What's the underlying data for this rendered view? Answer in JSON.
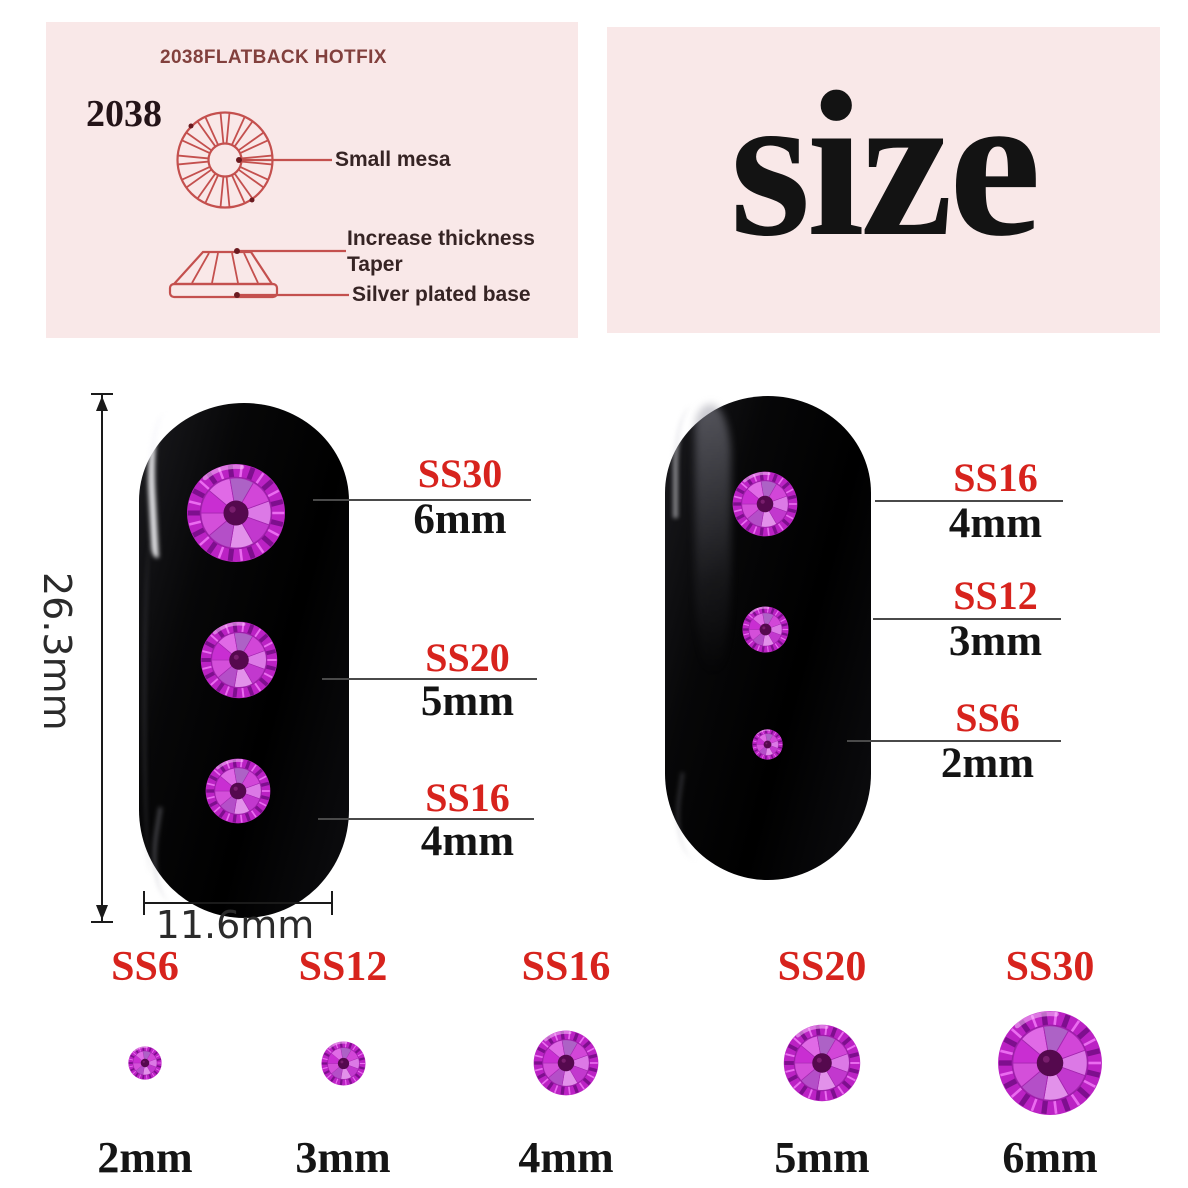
{
  "top_left_panel": {
    "title": "2038FLATBACK HOTFIX",
    "model_number": "2038",
    "labels": {
      "small_mesa": "Small mesa",
      "increase_thickness": "Increase thickness",
      "taper": "Taper",
      "silver_plated_base": "Silver plated base"
    }
  },
  "top_right_panel": {
    "heading": "size"
  },
  "left_nail": {
    "height_label": "26.3mm",
    "width_label": "11.6mm",
    "callouts": [
      {
        "ss": "SS30",
        "mm": "6mm"
      },
      {
        "ss": "SS20",
        "mm": "5mm"
      },
      {
        "ss": "SS16",
        "mm": "4mm"
      }
    ]
  },
  "right_nail": {
    "callouts": [
      {
        "ss": "SS16",
        "mm": "4mm"
      },
      {
        "ss": "SS12",
        "mm": "3mm"
      },
      {
        "ss": "SS6",
        "mm": "2mm"
      }
    ]
  },
  "size_row": {
    "items": [
      {
        "ss": "SS6",
        "mm": "2mm"
      },
      {
        "ss": "SS12",
        "mm": "3mm"
      },
      {
        "ss": "SS16",
        "mm": "4mm"
      },
      {
        "ss": "SS20",
        "mm": "5mm"
      },
      {
        "ss": "SS30",
        "mm": "6mm"
      }
    ]
  },
  "colors": {
    "panel_bg": "#f9e8e8",
    "diagram_red": "#c4504e",
    "label_red": "#d7231d",
    "gem_magenta": "#bb22c4",
    "nail_black": "#0a0a0c"
  }
}
